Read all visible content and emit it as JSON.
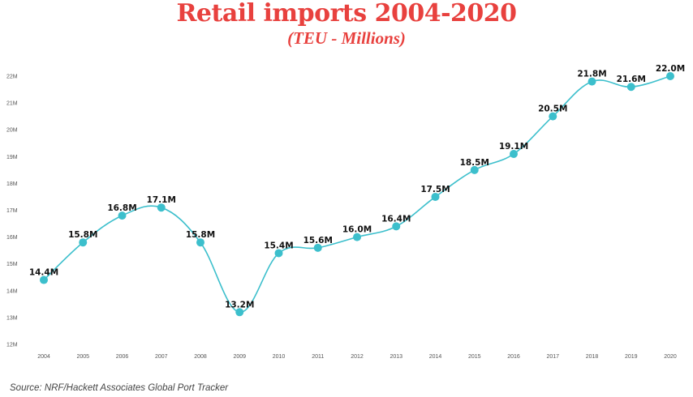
{
  "colors": {
    "title": "#e8413e",
    "line": "#3cbfcc",
    "marker": "#3cbfcc",
    "data_label": "#111111",
    "tick_label": "#555555",
    "source": "#444444"
  },
  "source": "Source: NRF/Hackett Associates Global Port Tracker",
  "chart_data": {
    "type": "line",
    "title": "Retail imports 2004-2020",
    "subtitle": "(TEU - Millions)",
    "xlabel": "",
    "ylabel": "",
    "grid": false,
    "x": [
      "2004",
      "2005",
      "2006",
      "2007",
      "2008",
      "2009",
      "2010",
      "2011",
      "2012",
      "2013",
      "2014",
      "2015",
      "2016",
      "2017",
      "2018",
      "2019",
      "2020"
    ],
    "values": [
      14.4,
      15.8,
      16.8,
      17.1,
      15.8,
      13.2,
      15.4,
      15.6,
      16.0,
      16.4,
      17.5,
      18.5,
      19.1,
      20.5,
      21.8,
      21.6,
      22.0
    ],
    "data_labels": [
      "14.4M",
      "15.8M",
      "16.8M",
      "17.1M",
      "15.8M",
      "13.2M",
      "15.4M",
      "15.6M",
      "16.0M",
      "16.4M",
      "17.5M",
      "18.5M",
      "19.1M",
      "20.5M",
      "21.8M",
      "21.6M",
      "22.0M"
    ],
    "ylim": [
      12,
      22
    ],
    "yticks": [
      12,
      13,
      14,
      15,
      16,
      17,
      18,
      19,
      20,
      21,
      22
    ],
    "ytick_labels": [
      "12M",
      "13M",
      "14M",
      "15M",
      "16M",
      "17M",
      "18M",
      "19M",
      "20M",
      "21M",
      "22M"
    ]
  }
}
